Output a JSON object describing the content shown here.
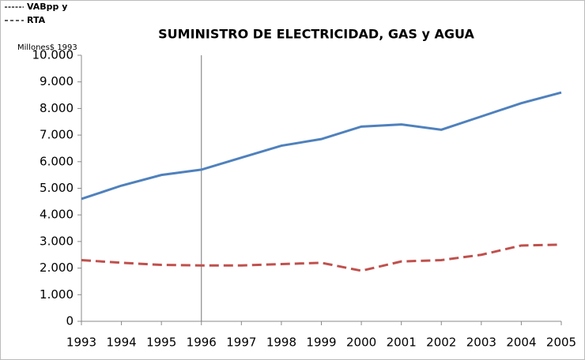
{
  "chart_data": {
    "type": "line",
    "title": "SUMINISTRO DE ELECTRICIDAD, GAS y AGUA",
    "y_label": "Millones$ 1993",
    "x": [
      1993,
      1994,
      1995,
      1996,
      1997,
      1998,
      1999,
      2000,
      2001,
      2002,
      2003,
      2004,
      2005
    ],
    "series": [
      {
        "name": "VABpp y",
        "color": "#4f81bd",
        "dash": false,
        "values": [
          4600,
          5100,
          5500,
          5700,
          6150,
          6600,
          6850,
          7320,
          7400,
          7200,
          7700,
          8200,
          8600
        ]
      },
      {
        "name": "RTA",
        "color": "#c0504d",
        "dash": true,
        "values": [
          2300,
          2200,
          2120,
          2100,
          2100,
          2150,
          2200,
          1900,
          2250,
          2300,
          2500,
          2850,
          2880
        ]
      }
    ],
    "xlim": [
      1993,
      2005
    ],
    "xticks": [
      1993,
      1994,
      1995,
      1996,
      1997,
      1998,
      1999,
      2000,
      2001,
      2002,
      2003,
      2004,
      2005
    ],
    "ylim": [
      0,
      10000
    ],
    "yticks": [
      0,
      {
        "value": 1000,
        "label": "1.000"
      },
      {
        "value": 2000,
        "label": "2.000"
      },
      {
        "value": 3000,
        "label": "3.000"
      },
      {
        "value": 4000,
        "label": "4.000"
      },
      {
        "value": 5000,
        "label": "5.000"
      },
      {
        "value": 6000,
        "label": "6.000"
      },
      {
        "value": 7000,
        "label": "7.000"
      },
      {
        "value": 8000,
        "label": "8.000"
      },
      {
        "value": 9000,
        "label": "9.000"
      },
      {
        "value": 10000,
        "label": "10.000"
      }
    ],
    "vline_x": 1996,
    "grid": false
  }
}
